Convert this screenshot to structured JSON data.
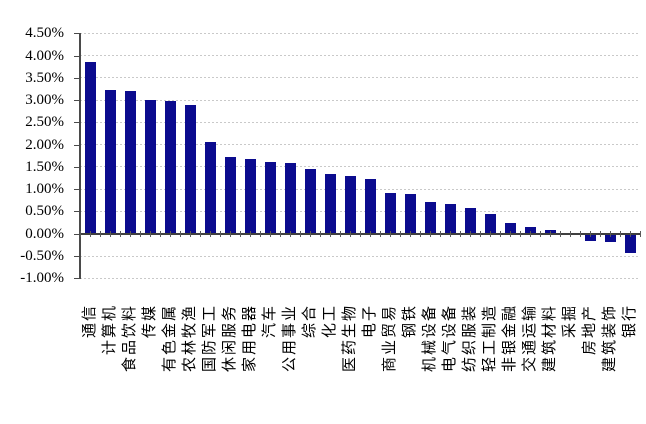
{
  "chart_data": {
    "type": "bar",
    "title": "",
    "xlabel": "",
    "ylabel": "",
    "legend": false,
    "grid": true,
    "ylim": [
      -1.0,
      4.5
    ],
    "ytick_step": 0.5,
    "ytick_labels": [
      "4.50%",
      "4.00%",
      "3.50%",
      "3.00%",
      "2.50%",
      "2.00%",
      "1.50%",
      "1.00%",
      "0.50%",
      "0.00%",
      "-0.50%",
      "-1.00%"
    ],
    "categories": [
      "通信",
      "计算机",
      "食品饮料",
      "传媒",
      "有色金属",
      "农林牧渔",
      "国防军工",
      "休闲服务",
      "家用电器",
      "汽车",
      "公用事业",
      "综合",
      "化工",
      "医药生物",
      "电子",
      "商业贸易",
      "钢铁",
      "机械设备",
      "电气设备",
      "纺织服装",
      "轻工制造",
      "非银金融",
      "交通运输",
      "建筑材料",
      "采掘",
      "房地产",
      "建筑装饰",
      "银行"
    ],
    "values": [
      3.86,
      3.22,
      3.2,
      3.0,
      2.97,
      2.88,
      2.06,
      1.72,
      1.67,
      1.6,
      1.58,
      1.45,
      1.35,
      1.29,
      1.23,
      0.92,
      0.9,
      0.72,
      0.66,
      0.58,
      0.45,
      0.24,
      0.15,
      0.08,
      0.02,
      -0.16,
      -0.18,
      -0.43
    ],
    "series_color": "#0b0b8e",
    "gridline_color": "#c9c9c9",
    "axis_color": "#4a4a4a"
  }
}
